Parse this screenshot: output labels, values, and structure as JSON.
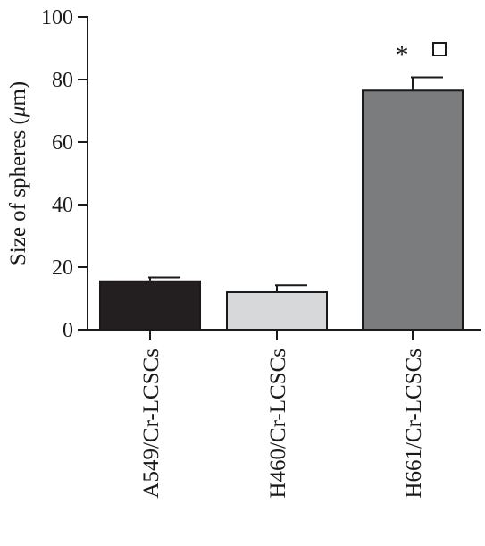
{
  "chart_data": {
    "type": "bar",
    "categories": [
      "A549/Cr-LCSCs",
      "H460/Cr-LCSCs",
      "H661/Cr-LCSCs"
    ],
    "values": [
      15.5,
      12.0,
      76.5
    ],
    "errors": [
      1.2,
      2.2,
      4.2
    ],
    "bar_colors": [
      "#231f20",
      "#d7d8d9",
      "#7b7c7e"
    ],
    "ylabel_text": "Size of spheres (",
    "ylabel_unit_symbol": "μ",
    "ylabel_unit_rest": "m)",
    "ylim": [
      0,
      100
    ],
    "yticks": [
      0,
      20,
      40,
      60,
      80,
      100
    ],
    "ytick_labels": [
      "0",
      "20",
      "40",
      "60",
      "80",
      "100"
    ],
    "annotations": {
      "significance_star": "*",
      "significance_box_icon": "open-square-icon"
    },
    "grid": false,
    "legend": "none"
  }
}
